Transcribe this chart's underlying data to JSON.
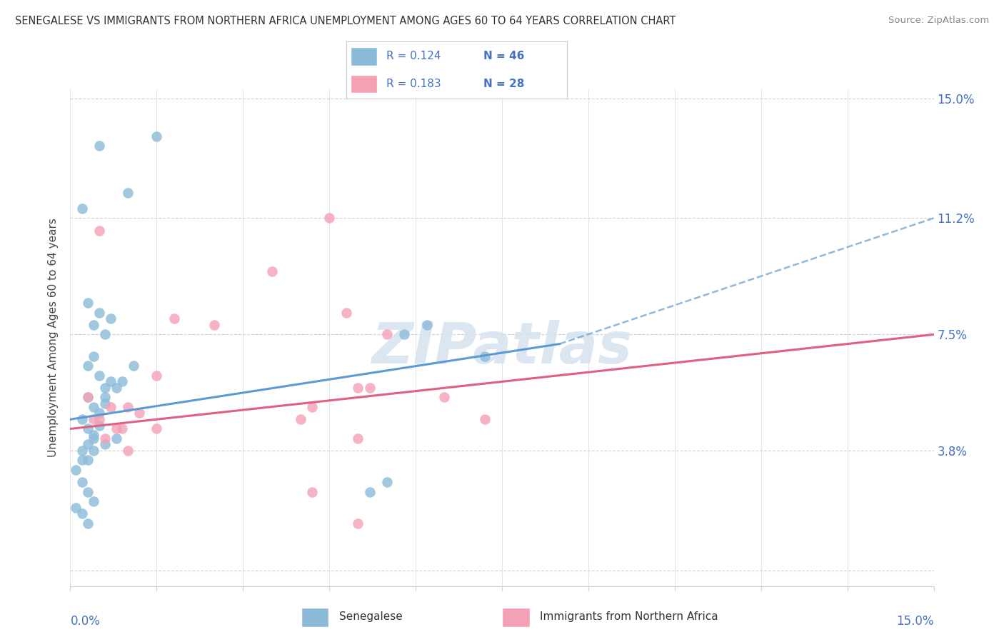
{
  "title": "SENEGALESE VS IMMIGRANTS FROM NORTHERN AFRICA UNEMPLOYMENT AMONG AGES 60 TO 64 YEARS CORRELATION CHART",
  "source": "Source: ZipAtlas.com",
  "ylabel": "Unemployment Among Ages 60 to 64 years",
  "xmin": 0.0,
  "xmax": 15.0,
  "ymin": 0.0,
  "ymax": 15.0,
  "ytick_vals": [
    0.0,
    3.8,
    7.5,
    11.2,
    15.0
  ],
  "ytick_labels": [
    "",
    "3.8%",
    "7.5%",
    "11.2%",
    "15.0%"
  ],
  "xtick_vals": [
    0.0,
    1.5,
    3.0,
    4.5,
    6.0,
    7.5,
    9.0,
    10.5,
    12.0,
    13.5,
    15.0
  ],
  "blue_R": "0.124",
  "blue_N": "46",
  "pink_R": "0.183",
  "pink_N": "28",
  "blue_dot_color": "#8bbbd9",
  "pink_dot_color": "#f4a0b5",
  "blue_line_color": "#5b9bd5",
  "pink_line_color": "#e06080",
  "label_color": "#4472c4",
  "grid_color": "#d0d0d0",
  "watermark_color": "#d8e4f0",
  "blue_scatter_x": [
    0.5,
    1.0,
    1.5,
    0.2,
    0.3,
    0.4,
    0.5,
    0.6,
    0.7,
    0.3,
    0.4,
    0.5,
    0.6,
    0.7,
    0.3,
    0.4,
    0.5,
    0.6,
    0.2,
    0.3,
    0.4,
    0.5,
    0.3,
    0.4,
    0.2,
    0.3,
    0.1,
    0.2,
    0.3,
    0.4,
    0.1,
    0.2,
    0.3,
    5.2,
    5.5,
    5.8,
    6.2,
    7.2,
    0.6,
    0.8,
    0.9,
    1.1,
    0.2,
    0.4,
    0.6,
    0.8
  ],
  "blue_scatter_y": [
    13.5,
    12.0,
    13.8,
    11.5,
    8.5,
    7.8,
    8.2,
    7.5,
    8.0,
    6.5,
    6.8,
    6.2,
    5.8,
    6.0,
    5.5,
    5.2,
    5.0,
    5.3,
    4.8,
    4.5,
    4.2,
    4.6,
    4.0,
    4.3,
    3.8,
    3.5,
    3.2,
    2.8,
    2.5,
    2.2,
    2.0,
    1.8,
    1.5,
    2.5,
    2.8,
    7.5,
    7.8,
    6.8,
    5.5,
    5.8,
    6.0,
    6.5,
    3.5,
    3.8,
    4.0,
    4.2
  ],
  "pink_scatter_x": [
    0.3,
    0.5,
    0.7,
    0.9,
    1.2,
    1.5,
    0.4,
    0.6,
    0.8,
    1.0,
    0.5,
    3.5,
    4.5,
    4.8,
    5.2,
    6.5,
    7.2,
    1.8,
    2.5,
    4.2,
    5.0,
    5.5,
    4.0,
    5.0,
    1.0,
    1.5,
    4.2,
    5.0
  ],
  "pink_scatter_y": [
    5.5,
    4.8,
    5.2,
    4.5,
    5.0,
    6.2,
    4.8,
    4.2,
    4.5,
    5.2,
    10.8,
    9.5,
    11.2,
    8.2,
    5.8,
    5.5,
    4.8,
    8.0,
    7.8,
    5.2,
    5.8,
    7.5,
    4.8,
    4.2,
    3.8,
    4.5,
    2.5,
    1.5
  ],
  "blue_trend_x0": 0.0,
  "blue_trend_y0": 4.8,
  "blue_trend_x1": 8.5,
  "blue_trend_y1": 7.2,
  "blue_dash_x0": 8.5,
  "blue_dash_y0": 7.2,
  "blue_dash_x1": 15.0,
  "blue_dash_y1": 11.2,
  "pink_trend_x0": 0.0,
  "pink_trend_y0": 4.5,
  "pink_trend_x1": 15.0,
  "pink_trend_y1": 7.5
}
